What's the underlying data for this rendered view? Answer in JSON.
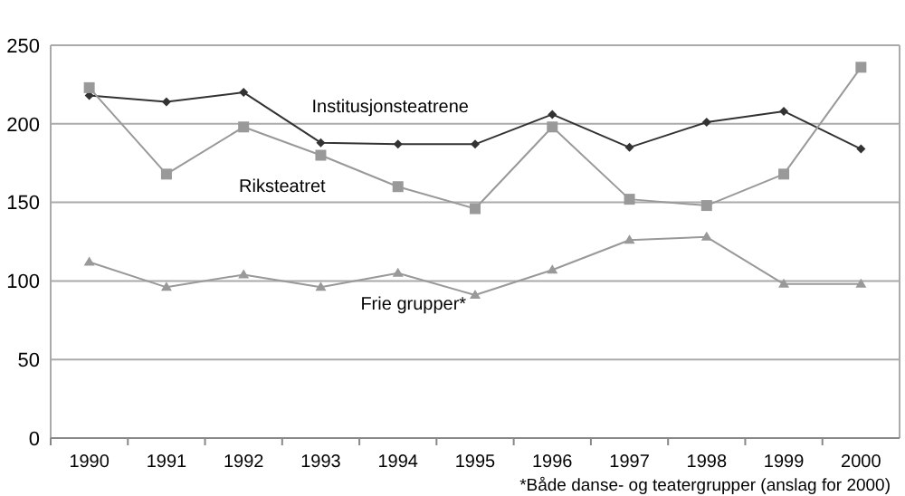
{
  "chart_data": {
    "type": "line",
    "categories": [
      "1990",
      "1991",
      "1992",
      "1993",
      "1994",
      "1995",
      "1996",
      "1997",
      "1998",
      "1999",
      "2000"
    ],
    "series": [
      {
        "name": "Institusjonsteatrene",
        "color": "#333333",
        "marker": "diamond",
        "values": [
          218,
          214,
          220,
          188,
          187,
          187,
          206,
          185,
          201,
          208,
          184
        ]
      },
      {
        "name": "Riksteatret",
        "color": "#999999",
        "marker": "square",
        "values": [
          223,
          168,
          198,
          180,
          160,
          146,
          198,
          152,
          148,
          168,
          236
        ]
      },
      {
        "name": "Frie grupper*",
        "color": "#999999",
        "marker": "triangle",
        "values": [
          112,
          96,
          104,
          96,
          105,
          91,
          107,
          126,
          128,
          98,
          98
        ]
      }
    ],
    "ylim": [
      0,
      250
    ],
    "yticks": [
      0,
      50,
      100,
      150,
      200,
      250
    ],
    "grid": "y",
    "annotations": [
      "*Både danse- og teatergrupper (anslag for 2000)"
    ]
  }
}
